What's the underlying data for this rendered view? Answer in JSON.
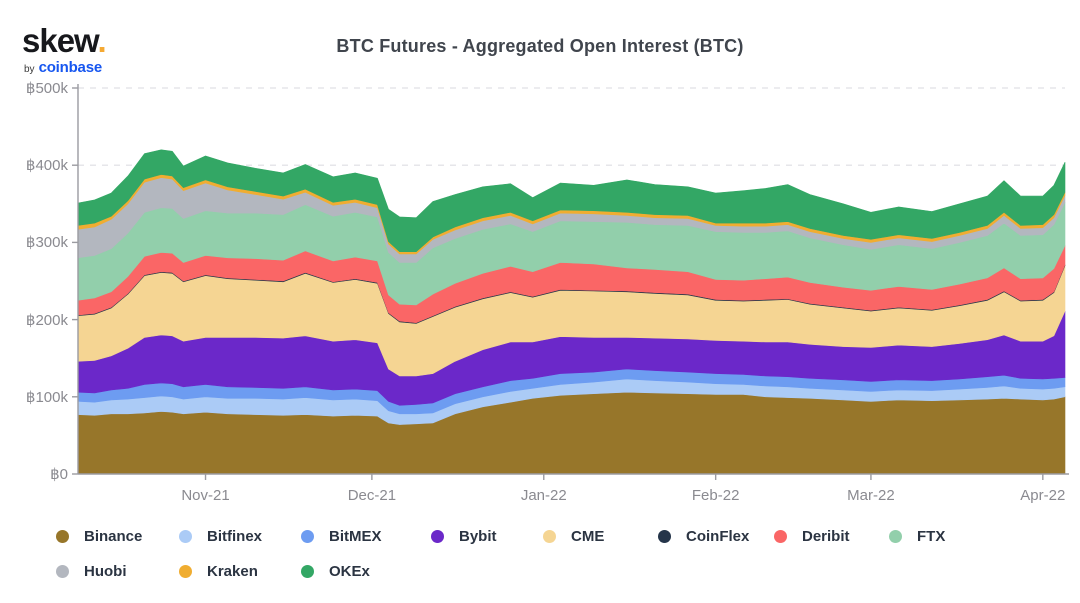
{
  "logo": {
    "text": "skew",
    "dot": ".",
    "by": "by",
    "brand": "coinbase"
  },
  "title": "BTC Futures - Aggregated Open Interest (BTC)",
  "colors": {
    "background": "#ffffff",
    "title_text": "#40454d",
    "axis_label": "#8a8a90",
    "axis_line": "#9b9ba1",
    "grid_line": "#e6e6ea",
    "legend_text": "#2b3442",
    "logo_dot": "#f5a933",
    "coinbase_blue": "#1656f0"
  },
  "chart_data": {
    "type": "area",
    "stacked": true,
    "title": "BTC Futures - Aggregated Open Interest (BTC)",
    "unit": "BTC",
    "values_scale": "thousands of BTC",
    "ylim_k": [
      0,
      500
    ],
    "grid": "horizontal-dashed",
    "legend_position": "bottom",
    "y_ticks": [
      {
        "label": "฿0",
        "value": 0
      },
      {
        "label": "฿100k",
        "value": 100
      },
      {
        "label": "฿200k",
        "value": 200
      },
      {
        "label": "฿300k",
        "value": 300
      },
      {
        "label": "฿400k",
        "value": 400
      },
      {
        "label": "฿500k",
        "value": 500
      }
    ],
    "x_ticks": [
      {
        "label": "Nov-21",
        "date": "2021-11-01"
      },
      {
        "label": "Dec-21",
        "date": "2021-12-01"
      },
      {
        "label": "Jan-22",
        "date": "2022-01-01"
      },
      {
        "label": "Feb-22",
        "date": "2022-02-01"
      },
      {
        "label": "Mar-22",
        "date": "2022-03-01"
      },
      {
        "label": "Apr-22",
        "date": "2022-04-01"
      }
    ],
    "x": [
      "2021-10-09",
      "2021-10-12",
      "2021-10-15",
      "2021-10-18",
      "2021-10-21",
      "2021-10-24",
      "2021-10-26",
      "2021-10-28",
      "2021-11-01",
      "2021-11-05",
      "2021-11-10",
      "2021-11-15",
      "2021-11-19",
      "2021-11-24",
      "2021-11-28",
      "2021-12-02",
      "2021-12-04",
      "2021-12-06",
      "2021-12-09",
      "2021-12-12",
      "2021-12-16",
      "2021-12-21",
      "2021-12-26",
      "2021-12-30",
      "2022-01-04",
      "2022-01-10",
      "2022-01-16",
      "2022-01-21",
      "2022-01-27",
      "2022-02-01",
      "2022-02-06",
      "2022-02-10",
      "2022-02-14",
      "2022-02-18",
      "2022-02-24",
      "2022-03-01",
      "2022-03-06",
      "2022-03-12",
      "2022-03-17",
      "2022-03-22",
      "2022-03-25",
      "2022-03-28",
      "2022-04-01",
      "2022-04-03",
      "2022-04-05"
    ],
    "series": [
      {
        "name": "Binance",
        "color": "#97762a",
        "values": [
          77,
          76,
          78,
          78,
          79,
          81,
          80,
          78,
          80,
          78,
          77,
          76,
          77,
          75,
          76,
          75,
          66,
          64,
          65,
          66,
          78,
          87,
          93,
          98,
          102,
          104,
          106,
          105,
          104,
          103,
          103,
          100,
          99,
          98,
          96,
          94,
          96,
          95,
          96,
          97,
          98,
          97,
          96,
          97,
          100
        ]
      },
      {
        "name": "Bitfinex",
        "color": "#abcbf6",
        "values": [
          17,
          17,
          18,
          19,
          20,
          20,
          20,
          19,
          20,
          20,
          21,
          21,
          22,
          21,
          21,
          20,
          16,
          14,
          13,
          13,
          13,
          13,
          14,
          13,
          14,
          15,
          17,
          16,
          15,
          14,
          13,
          14,
          14,
          13,
          13,
          13,
          13,
          13,
          14,
          15,
          16,
          14,
          14,
          14,
          13
        ]
      },
      {
        "name": "BitMEX",
        "color": "#6d9cf1",
        "values": [
          12,
          12,
          13,
          14,
          17,
          17,
          17,
          16,
          16,
          15,
          14,
          14,
          14,
          13,
          13,
          13,
          12,
          11,
          12,
          13,
          13,
          13,
          14,
          13,
          14,
          13,
          13,
          13,
          13,
          13,
          13,
          13,
          13,
          13,
          13,
          13,
          13,
          13,
          13,
          14,
          14,
          13,
          13,
          13,
          12
        ]
      },
      {
        "name": "Bybit",
        "color": "#6b28c9",
        "values": [
          40,
          42,
          44,
          52,
          61,
          62,
          62,
          59,
          61,
          64,
          65,
          65,
          66,
          63,
          64,
          62,
          42,
          38,
          37,
          38,
          42,
          48,
          50,
          47,
          48,
          45,
          41,
          42,
          43,
          43,
          43,
          44,
          45,
          44,
          43,
          44,
          45,
          44,
          46,
          48,
          52,
          48,
          49,
          55,
          86
        ]
      },
      {
        "name": "CME",
        "color": "#f5d593",
        "values": [
          59,
          60,
          62,
          70,
          80,
          81,
          81,
          77,
          80,
          76,
          74,
          73,
          81,
          76,
          78,
          77,
          72,
          70,
          68,
          74,
          70,
          66,
          64,
          58,
          60,
          60,
          59,
          58,
          57,
          52,
          52,
          54,
          55,
          52,
          50,
          47,
          48,
          47,
          49,
          51,
          56,
          52,
          53,
          56,
          59
        ]
      },
      {
        "name": "CoinFlex",
        "color": "#25354a",
        "values": [
          1,
          1,
          1,
          1,
          1,
          1,
          1,
          1,
          1,
          1,
          1,
          1,
          1,
          1,
          1,
          1,
          1,
          1,
          1,
          1,
          1,
          1,
          1,
          1,
          1,
          1,
          1,
          1,
          1,
          1,
          1,
          1,
          1,
          1,
          1,
          1,
          1,
          1,
          1,
          1,
          1,
          1,
          1,
          1,
          1
        ]
      },
      {
        "name": "Deribit",
        "color": "#fa6666",
        "values": [
          19,
          20,
          20,
          22,
          24,
          25,
          25,
          24,
          25,
          26,
          27,
          27,
          28,
          27,
          28,
          28,
          23,
          22,
          23,
          28,
          30,
          32,
          33,
          32,
          35,
          34,
          30,
          30,
          29,
          26,
          26,
          27,
          28,
          27,
          26,
          26,
          27,
          26,
          27,
          28,
          30,
          28,
          28,
          30,
          25
        ]
      },
      {
        "name": "FTX",
        "color": "#92cfab",
        "values": [
          55,
          55,
          56,
          56,
          57,
          58,
          58,
          57,
          58,
          58,
          59,
          59,
          60,
          58,
          58,
          57,
          55,
          54,
          55,
          60,
          58,
          57,
          55,
          52,
          54,
          55,
          59,
          58,
          60,
          62,
          62,
          60,
          60,
          58,
          55,
          53,
          54,
          53,
          54,
          55,
          58,
          56,
          56,
          57,
          56
        ]
      },
      {
        "name": "Huobi",
        "color": "#b3b7bf",
        "values": [
          37,
          37,
          38,
          38,
          39,
          39,
          38,
          36,
          36,
          30,
          24,
          20,
          16,
          14,
          13,
          12,
          11,
          11,
          11,
          11,
          11,
          11,
          11,
          10,
          10,
          10,
          9,
          9,
          9,
          8,
          8,
          8,
          8,
          8,
          8,
          9,
          9,
          9,
          9,
          9,
          10,
          9,
          9,
          9,
          9
        ]
      },
      {
        "name": "Kraken",
        "color": "#f0ad31",
        "values": [
          5,
          5,
          4,
          4,
          4,
          4,
          4,
          4,
          4,
          4,
          4,
          4,
          4,
          4,
          4,
          4,
          3,
          3,
          3,
          3,
          4,
          4,
          4,
          4,
          4,
          4,
          4,
          4,
          4,
          3,
          4,
          4,
          4,
          4,
          4,
          4,
          4,
          4,
          4,
          4,
          4,
          4,
          4,
          4,
          4
        ]
      },
      {
        "name": "OKEx",
        "color": "#33a765",
        "values": [
          29,
          30,
          30,
          32,
          33,
          32,
          32,
          28,
          31,
          31,
          30,
          30,
          32,
          33,
          34,
          34,
          42,
          45,
          44,
          46,
          42,
          40,
          37,
          30,
          35,
          33,
          42,
          39,
          37,
          39,
          42,
          45,
          48,
          44,
          41,
          35,
          36,
          35,
          37,
          38,
          41,
          38,
          37,
          38,
          39
        ]
      }
    ]
  }
}
